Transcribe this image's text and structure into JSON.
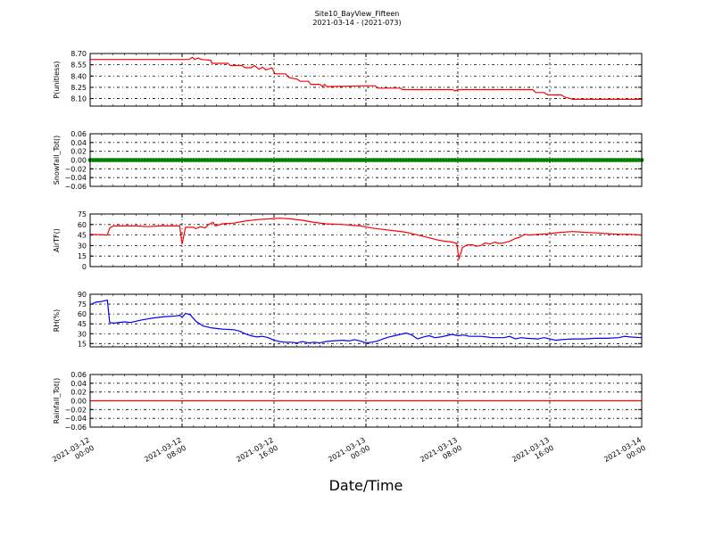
{
  "chart_data": {
    "type": "line",
    "title_line1": "Site10_BayView_Fifteen",
    "title_line2": "2021-03-14 - (2021-073)",
    "xlabel": "Date/Time",
    "x_range_hours": [
      0,
      48
    ],
    "x_tick_hours": [
      0,
      8,
      16,
      24,
      32,
      40,
      48
    ],
    "x_tick_labels": [
      [
        "2021-03-12",
        "00:00"
      ],
      [
        "2021-03-12",
        "08:00"
      ],
      [
        "2021-03-12",
        "16:00"
      ],
      [
        "2021-03-13",
        "00:00"
      ],
      [
        "2021-03-13",
        "08:00"
      ],
      [
        "2021-03-13",
        "16:00"
      ],
      [
        "2021-03-14",
        "00:00"
      ]
    ],
    "grid": true,
    "panels": [
      {
        "ylabel": "P(unitless)",
        "color": "#ff0000",
        "ylim": [
          8.0,
          8.7
        ],
        "yticks": [
          8.1,
          8.25,
          8.4,
          8.55,
          8.7
        ],
        "ytick_labels": [
          "8.10",
          "8.25",
          "8.40",
          "8.55",
          "8.70"
        ],
        "markers": false,
        "points": [
          [
            0,
            8.62
          ],
          [
            8,
            8.62
          ],
          [
            8.6,
            8.62
          ],
          [
            8.9,
            8.65
          ],
          [
            9.1,
            8.62
          ],
          [
            9.4,
            8.64
          ],
          [
            9.7,
            8.62
          ],
          [
            10.5,
            8.61
          ],
          [
            10.6,
            8.57
          ],
          [
            12,
            8.57
          ],
          [
            12.2,
            8.54
          ],
          [
            13.2,
            8.54
          ],
          [
            13.5,
            8.51
          ],
          [
            14,
            8.51
          ],
          [
            14.3,
            8.54
          ],
          [
            14.7,
            8.49
          ],
          [
            15,
            8.52
          ],
          [
            15.3,
            8.48
          ],
          [
            15.8,
            8.51
          ],
          [
            16.1,
            8.43
          ],
          [
            17,
            8.43
          ],
          [
            17.3,
            8.38
          ],
          [
            18,
            8.36
          ],
          [
            18.3,
            8.33
          ],
          [
            19,
            8.33
          ],
          [
            19.2,
            8.29
          ],
          [
            20,
            8.29
          ],
          [
            20.2,
            8.26
          ],
          [
            20.4,
            8.29
          ],
          [
            20.6,
            8.26
          ],
          [
            24,
            8.27
          ],
          [
            24.8,
            8.27
          ],
          [
            25,
            8.24
          ],
          [
            27,
            8.24
          ],
          [
            27.2,
            8.22
          ],
          [
            31.5,
            8.22
          ],
          [
            31.8,
            8.2
          ],
          [
            32,
            8.22
          ],
          [
            38.5,
            8.22
          ],
          [
            38.8,
            8.18
          ],
          [
            39.5,
            8.18
          ],
          [
            39.8,
            8.15
          ],
          [
            41,
            8.15
          ],
          [
            41.3,
            8.12
          ],
          [
            41.8,
            8.1
          ],
          [
            42,
            8.09
          ],
          [
            48,
            8.09
          ]
        ]
      },
      {
        "ylabel": "Snowfall_Tot()",
        "color": "#008000",
        "ylim": [
          -0.06,
          0.06
        ],
        "yticks": [
          -0.06,
          -0.04,
          -0.02,
          0.0,
          0.02,
          0.04,
          0.06
        ],
        "ytick_labels": [
          "−0.06",
          "−0.04",
          "−0.02",
          "0.00",
          "0.02",
          "0.04",
          "0.06"
        ],
        "markers": true,
        "points": [
          [
            0,
            0
          ],
          [
            48,
            0
          ]
        ]
      },
      {
        "ylabel": "AirTF()",
        "color": "#ff0000",
        "ylim": [
          0,
          75
        ],
        "yticks": [
          0,
          15,
          30,
          45,
          60,
          75
        ],
        "ytick_labels": [
          "0",
          "15",
          "30",
          "45",
          "60",
          "75"
        ],
        "markers": false,
        "points": [
          [
            0,
            46
          ],
          [
            1.5,
            45
          ],
          [
            1.7,
            55
          ],
          [
            2,
            58
          ],
          [
            4,
            58
          ],
          [
            5,
            57
          ],
          [
            6,
            58
          ],
          [
            7.8,
            58
          ],
          [
            8,
            32
          ],
          [
            8.3,
            56
          ],
          [
            9,
            56
          ],
          [
            9.2,
            54
          ],
          [
            9.6,
            57
          ],
          [
            10,
            55
          ],
          [
            10.3,
            60
          ],
          [
            10.7,
            63
          ],
          [
            10.9,
            58
          ],
          [
            11.5,
            61
          ],
          [
            12.5,
            62
          ],
          [
            13.5,
            65
          ],
          [
            14.5,
            67
          ],
          [
            15.5,
            68
          ],
          [
            16.5,
            69
          ],
          [
            17.5,
            68
          ],
          [
            18.5,
            66
          ],
          [
            19.5,
            63
          ],
          [
            20.5,
            61
          ],
          [
            22,
            60
          ],
          [
            23.5,
            58
          ],
          [
            24.5,
            55
          ],
          [
            25.5,
            53
          ],
          [
            26.5,
            51
          ],
          [
            27.5,
            49
          ],
          [
            28.5,
            45
          ],
          [
            29.5,
            41
          ],
          [
            30.5,
            37
          ],
          [
            31.5,
            35
          ],
          [
            31.9,
            33
          ],
          [
            32.1,
            11
          ],
          [
            32.4,
            27
          ],
          [
            32.8,
            31
          ],
          [
            33.3,
            31
          ],
          [
            33.6,
            29
          ],
          [
            34,
            30
          ],
          [
            34.4,
            34
          ],
          [
            34.8,
            32
          ],
          [
            35.2,
            35
          ],
          [
            35.6,
            33
          ],
          [
            36,
            34
          ],
          [
            36.5,
            36
          ],
          [
            37,
            40
          ],
          [
            37.4,
            42
          ],
          [
            37.8,
            46
          ],
          [
            38.2,
            45
          ],
          [
            39,
            46
          ],
          [
            40,
            47
          ],
          [
            41,
            49
          ],
          [
            42,
            50
          ],
          [
            43,
            49
          ],
          [
            44,
            48
          ],
          [
            45,
            47
          ],
          [
            46,
            46
          ],
          [
            47,
            46
          ],
          [
            48,
            45
          ]
        ]
      },
      {
        "ylabel": "RH(%)",
        "color": "#0000ff",
        "ylim": [
          10,
          90
        ],
        "yticks": [
          15,
          30,
          45,
          60,
          75,
          90
        ],
        "ytick_labels": [
          "15",
          "30",
          "45",
          "60",
          "75",
          "90"
        ],
        "markers": false,
        "points": [
          [
            0,
            74
          ],
          [
            0.5,
            78
          ],
          [
            1,
            79
          ],
          [
            1.5,
            81
          ],
          [
            1.7,
            47
          ],
          [
            2,
            46
          ],
          [
            3,
            48
          ],
          [
            3.5,
            47
          ],
          [
            4.5,
            51
          ],
          [
            5.5,
            54
          ],
          [
            6.5,
            56
          ],
          [
            7.5,
            57
          ],
          [
            7.8,
            58
          ],
          [
            8,
            55
          ],
          [
            8.3,
            61
          ],
          [
            8.7,
            59
          ],
          [
            9.2,
            49
          ],
          [
            9.8,
            42
          ],
          [
            10.5,
            39
          ],
          [
            11,
            38
          ],
          [
            11.5,
            37
          ],
          [
            12.5,
            36
          ],
          [
            13,
            34
          ],
          [
            13.5,
            30
          ],
          [
            14,
            27
          ],
          [
            14.5,
            25
          ],
          [
            15,
            26
          ],
          [
            15.5,
            24
          ],
          [
            16,
            20
          ],
          [
            16.5,
            18
          ],
          [
            17,
            17
          ],
          [
            17.5,
            17
          ],
          [
            18,
            16
          ],
          [
            18.5,
            18
          ],
          [
            19,
            16
          ],
          [
            19.5,
            17
          ],
          [
            20,
            16
          ],
          [
            20.5,
            18
          ],
          [
            21,
            19
          ],
          [
            22,
            20
          ],
          [
            22.5,
            19
          ],
          [
            23,
            21
          ],
          [
            23.5,
            19
          ],
          [
            24,
            16
          ],
          [
            24.5,
            17
          ],
          [
            25,
            19
          ],
          [
            25.5,
            22
          ],
          [
            26,
            25
          ],
          [
            26.5,
            27
          ],
          [
            27,
            29
          ],
          [
            27.5,
            31
          ],
          [
            28,
            28
          ],
          [
            28.5,
            22
          ],
          [
            29,
            25
          ],
          [
            29.5,
            27
          ],
          [
            30,
            24
          ],
          [
            30.5,
            25
          ],
          [
            31,
            27
          ],
          [
            31.5,
            29
          ],
          [
            32,
            27
          ],
          [
            32.5,
            28
          ],
          [
            33,
            26
          ],
          [
            34,
            26
          ],
          [
            34.5,
            25
          ],
          [
            35,
            24
          ],
          [
            36,
            24
          ],
          [
            36.5,
            26
          ],
          [
            37,
            22
          ],
          [
            37.5,
            24
          ],
          [
            38,
            23
          ],
          [
            39,
            22
          ],
          [
            39.5,
            24
          ],
          [
            40,
            22
          ],
          [
            40.5,
            20
          ],
          [
            41,
            21
          ],
          [
            42,
            22
          ],
          [
            43,
            22
          ],
          [
            44,
            23
          ],
          [
            45,
            23
          ],
          [
            46,
            24
          ],
          [
            46.5,
            26
          ],
          [
            47,
            25
          ],
          [
            48,
            24
          ]
        ]
      },
      {
        "ylabel": "Rainfall_Tot()",
        "color": "#ff0000",
        "ylim": [
          -0.06,
          0.06
        ],
        "yticks": [
          -0.06,
          -0.04,
          -0.02,
          0.0,
          0.02,
          0.04,
          0.06
        ],
        "ytick_labels": [
          "−0.06",
          "−0.04",
          "−0.02",
          "0.00",
          "0.02",
          "0.04",
          "0.06"
        ],
        "markers": false,
        "points": [
          [
            0,
            0
          ],
          [
            48,
            0
          ]
        ]
      }
    ]
  }
}
